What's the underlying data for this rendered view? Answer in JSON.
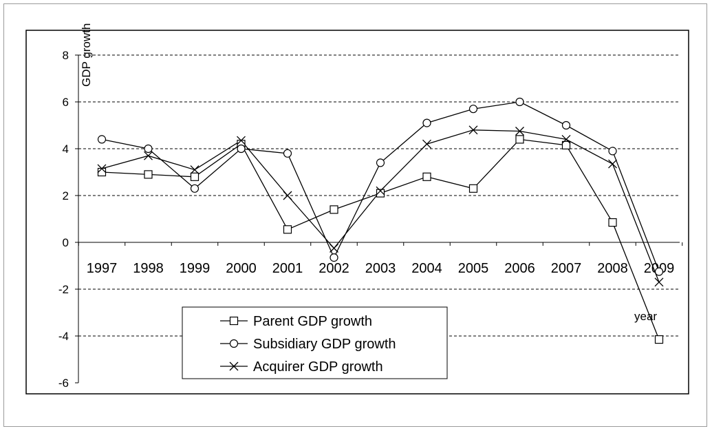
{
  "chart_data": {
    "type": "line",
    "title": "",
    "xlabel": "year",
    "ylabel": "GDP growth",
    "categories": [
      "1997",
      "1998",
      "1999",
      "2000",
      "2001",
      "2002",
      "2003",
      "2004",
      "2005",
      "2006",
      "2007",
      "2008",
      "2009"
    ],
    "ylim": [
      -6,
      8
    ],
    "yticks": [
      -6,
      -4,
      -2,
      0,
      2,
      4,
      6,
      8
    ],
    "grid": "horizontal dashed",
    "legend_position": "bottom-left inside plot",
    "series": [
      {
        "name": "Parent GDP growth",
        "marker": "square",
        "values": [
          3.0,
          2.9,
          2.8,
          4.2,
          0.55,
          1.4,
          2.1,
          2.8,
          2.3,
          4.4,
          4.15,
          0.85,
          -4.15
        ]
      },
      {
        "name": "Subsidiary GDP growth",
        "marker": "circle",
        "values": [
          4.4,
          4.0,
          2.3,
          4.0,
          3.8,
          -0.65,
          3.4,
          5.1,
          5.7,
          6.0,
          5.0,
          3.9,
          -1.25
        ]
      },
      {
        "name": "Acquirer GDP growth",
        "marker": "x",
        "values": [
          3.15,
          3.7,
          3.1,
          4.35,
          2.0,
          -0.25,
          2.2,
          4.2,
          4.8,
          4.75,
          4.4,
          3.35,
          -1.7
        ]
      }
    ]
  }
}
